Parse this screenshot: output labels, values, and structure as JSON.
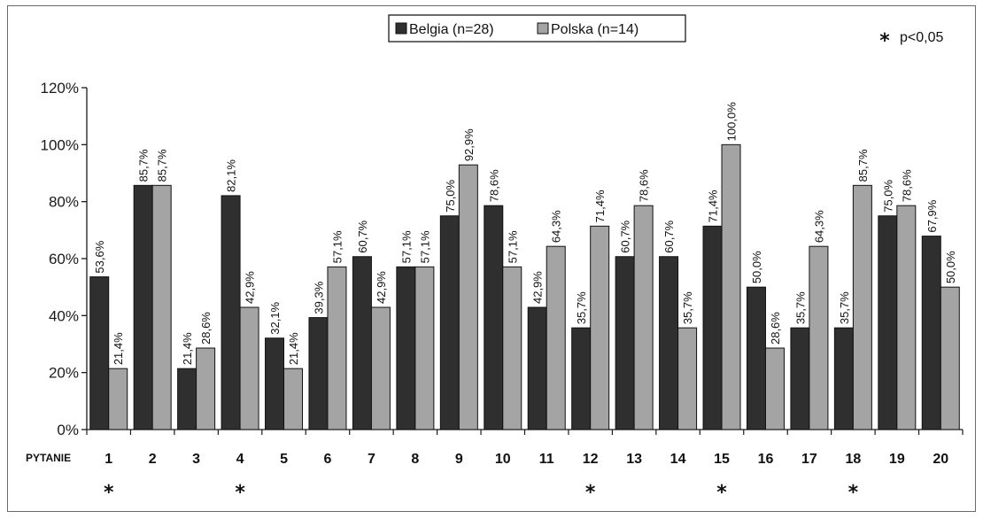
{
  "chart_data": {
    "type": "bar",
    "title": "",
    "xlabel": "PYTANIE",
    "ylabel": "",
    "ylim": [
      0,
      120
    ],
    "yticks": [
      0,
      20,
      40,
      60,
      80,
      100,
      120
    ],
    "ytick_labels": [
      "0%",
      "20%",
      "40%",
      "60%",
      "80%",
      "100%",
      "120%"
    ],
    "grid": false,
    "legend_position": "top-center",
    "categories": [
      "1",
      "2",
      "3",
      "4",
      "5",
      "6",
      "7",
      "8",
      "9",
      "10",
      "11",
      "12",
      "13",
      "14",
      "15",
      "16",
      "17",
      "18",
      "19",
      "20"
    ],
    "series": [
      {
        "name": "Belgia (n=28)",
        "color": "#2f2f2f",
        "values": [
          53.6,
          85.7,
          21.4,
          82.1,
          32.1,
          39.3,
          60.7,
          57.1,
          75.0,
          78.6,
          42.9,
          35.7,
          60.7,
          60.7,
          71.4,
          50.0,
          35.7,
          35.7,
          75.0,
          67.9
        ],
        "labels": [
          "53,6%",
          "85,7%",
          "21,4%",
          "82,1%",
          "32,1%",
          "39,3%",
          "60,7%",
          "57,1%",
          "75,0%",
          "78,6%",
          "42,9%",
          "35,7%",
          "60,7%",
          "60,7%",
          "71,4%",
          "50,0%",
          "35,7%",
          "35,7%",
          "75,0%",
          "67,9%"
        ]
      },
      {
        "name": "Polska (n=14)",
        "color": "#a4a4a4",
        "values": [
          21.4,
          85.7,
          28.6,
          42.9,
          21.4,
          57.1,
          42.9,
          57.1,
          92.9,
          57.1,
          64.3,
          71.4,
          78.6,
          35.7,
          100.0,
          28.6,
          64.3,
          85.7,
          78.6,
          50.0
        ],
        "labels": [
          "21,4%",
          "85,7%",
          "28,6%",
          "42,9%",
          "21,4%",
          "57,1%",
          "42,9%",
          "57,1%",
          "92,9%",
          "57,1%",
          "64,3%",
          "71,4%",
          "78,6%",
          "35,7%",
          "100,0%",
          "28,6%",
          "64,3%",
          "85,7%",
          "78,6%",
          "50,0%"
        ]
      }
    ],
    "significance": {
      "marker": "*",
      "note": "p<0,05",
      "categories": [
        "1",
        "4",
        "12",
        "15",
        "18"
      ]
    }
  }
}
